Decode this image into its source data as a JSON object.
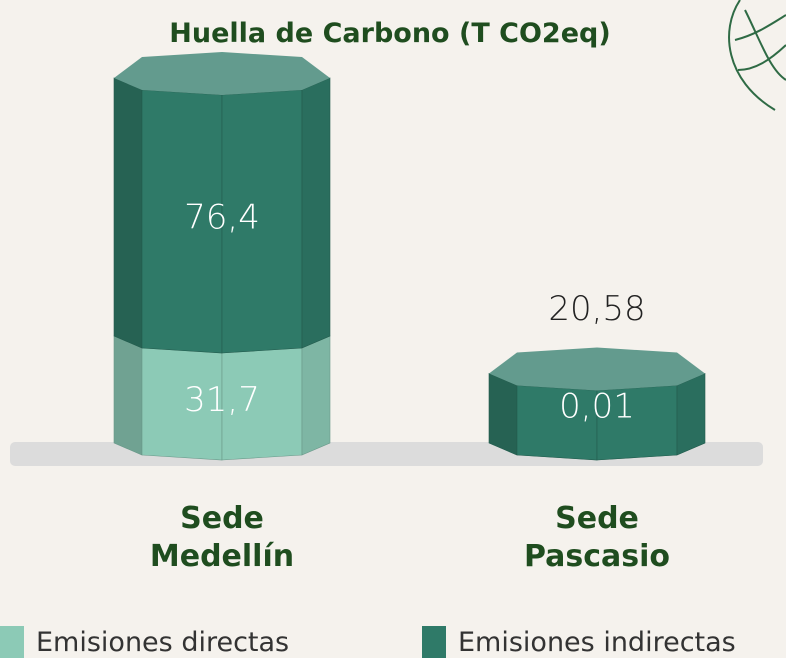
{
  "chart_data": {
    "type": "bar",
    "stacked": true,
    "title": "Huella de Carbono (T CO2eq)",
    "categories": [
      "Sede Medellín",
      "Sede Pascasio"
    ],
    "series": [
      {
        "name": "Emisiones directas",
        "color": "#8ccab6",
        "values": [
          31.7,
          0.01
        ],
        "value_labels": [
          "31,7",
          "0,01"
        ]
      },
      {
        "name": "Emisiones indirectas",
        "color": "#2f7a68",
        "values": [
          76.4,
          20.58
        ],
        "value_labels": [
          "76,4",
          "20,58"
        ]
      }
    ]
  }
}
